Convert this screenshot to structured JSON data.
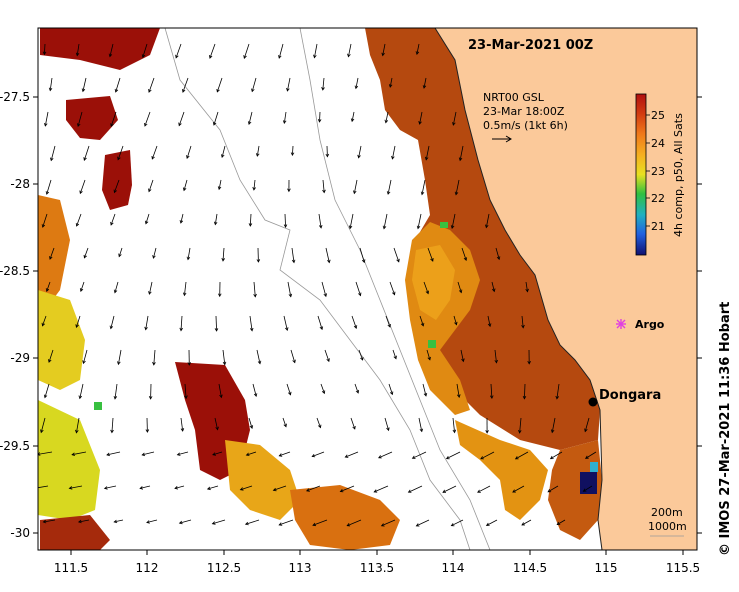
{
  "map": {
    "title": "23-Mar-2021 00Z",
    "lon_ticks": [
      "111.5",
      "112",
      "112.5",
      "113",
      "113.5",
      "114",
      "114.5",
      "115",
      "115.5"
    ],
    "lat_ticks": [
      "-27.5",
      "-28",
      "-28.5",
      "-29",
      "-29.5",
      "-30"
    ],
    "lon_range": [
      111.3,
      115.6
    ],
    "lat_range": [
      -30.1,
      -27.1
    ],
    "current_label": {
      "line1": "NRT00 GSL",
      "line2": "23-Mar 18:00Z",
      "line3": "0.5m/s (1kt 6h)"
    },
    "colorbar": {
      "ticks": [
        "25",
        "24",
        "23",
        "22",
        "21"
      ],
      "label": "4h comp, p50, All Sats"
    },
    "places": {
      "dongara": "Dongara",
      "argo": "Argo"
    },
    "isobaths": {
      "depth1": "200m",
      "depth2": "1000m"
    },
    "credit": "© IMOS 27-Mar-2021 11:36 Hobart",
    "colors": {
      "land": "#fbc99a",
      "sst_warm": "#b5490f",
      "sst_hot": "#9b1008",
      "sst_mid": "#e08a12",
      "sst_low": "#ecc216",
      "argo": "#e040e0"
    }
  }
}
